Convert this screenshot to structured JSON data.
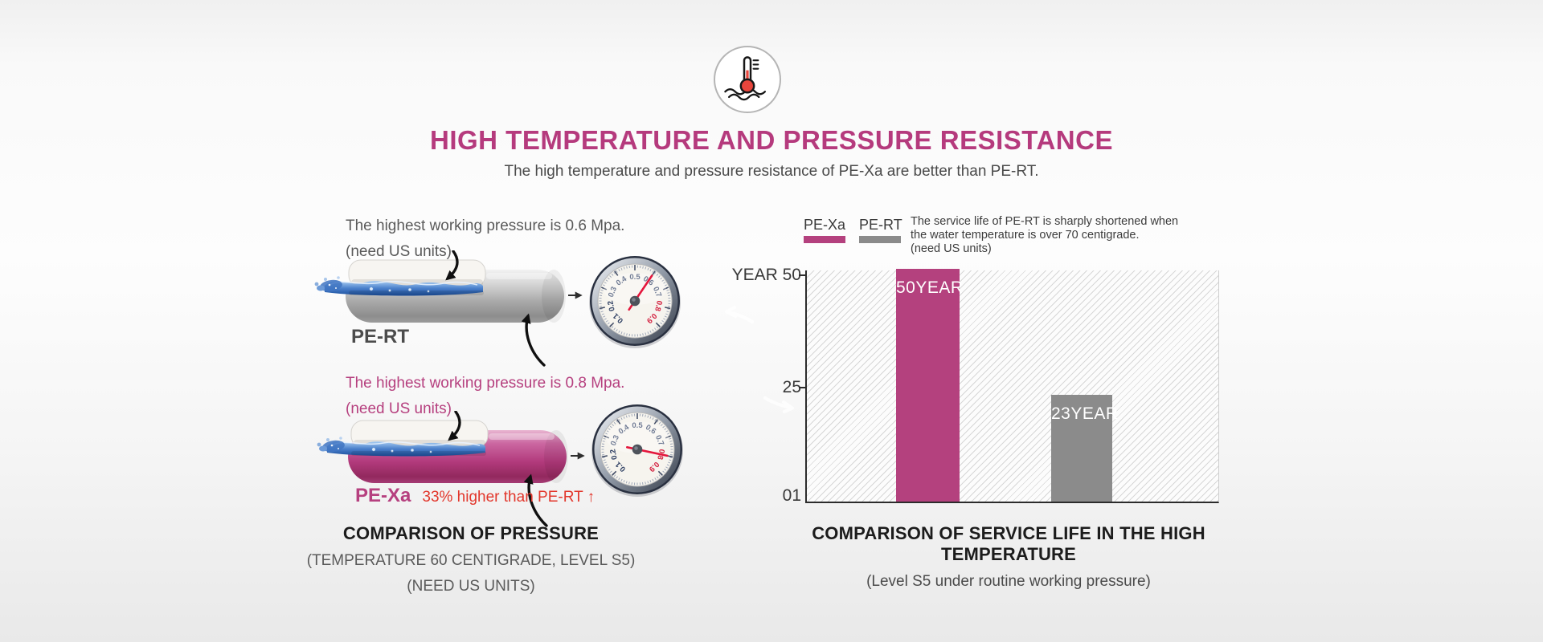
{
  "header": {
    "icon": "thermometer-water-icon",
    "title": "HIGH TEMPERATURE AND PRESSURE RESISTANCE",
    "subtitle": "The high temperature and pressure resistance of PE-Xa are better than PE-RT."
  },
  "pressure_section": {
    "blocks": [
      {
        "id": "pe-rt",
        "line1": "The highest working pressure is 0.6 Mpa.",
        "line2": "(need US units)",
        "label": "PE-RT",
        "gauge_value": 0.6,
        "pipe_gradient": [
          "#f2f2f2",
          "#d8d8d8",
          "#a9a9a9",
          "#8d8d8d",
          "#9c9c9c"
        ]
      },
      {
        "id": "pe-xa",
        "line1": "The highest working pressure is 0.8 Mpa.",
        "line2": "(need US units)",
        "label": "PE-Xa",
        "note": "33% higher than PE-RT ↑",
        "gauge_value": 0.8,
        "pipe_gradient": [
          "#e9b6d1",
          "#cb67a1",
          "#b23a7c",
          "#92295e",
          "#a63b75"
        ]
      }
    ],
    "caption": {
      "title": "COMPARISON OF PRESSURE",
      "sub1": "(TEMPERATURE 60 CENTIGRADE, LEVEL S5)",
      "sub2": "(NEED US UNITS)"
    }
  },
  "gauge": {
    "dial_numbers": [
      "0.1",
      "0.2",
      "0.3",
      "0.4",
      "0.5",
      "0.6",
      "0.7",
      "0.8",
      "0.9"
    ],
    "red_numbers": [
      "0.8",
      "0.9"
    ],
    "needle_color": "#e4163c"
  },
  "chart_section": {
    "legend": [
      {
        "label": "PE-Xa",
        "color": "#b4417e"
      },
      {
        "label": "PE-RT",
        "color": "#8b8b8b"
      }
    ],
    "note": {
      "line1": "The service life of PE-RT is sharply shortened when",
      "line2": "the water temperature is over 70 centigrade.",
      "line3": "(need US units)"
    },
    "caption": {
      "title": "COMPARISON OF SERVICE LIFE IN THE HIGH TEMPERATURE",
      "sub": "(Level S5 under routine working pressure)"
    }
  },
  "chart_data": {
    "type": "bar",
    "categories": [
      "PE-Xa",
      "PE-RT"
    ],
    "values": [
      50,
      23
    ],
    "bar_labels": [
      "50YEAR",
      "23YEAR"
    ],
    "bar_colors": [
      "#b4417e",
      "#8b8b8b"
    ],
    "ytick_labels": [
      "YEAR 50",
      "25",
      "01"
    ],
    "ytick_values": [
      50,
      25,
      0
    ],
    "ylim": [
      0,
      50
    ],
    "background": "diagonal-hatch",
    "legend_position": "top-left"
  },
  "colors": {
    "accent_magenta": "#b53a7d",
    "alert_red": "#e2362b",
    "text_dark": "#3c3c3c",
    "water_blue": "#2f62b0"
  }
}
